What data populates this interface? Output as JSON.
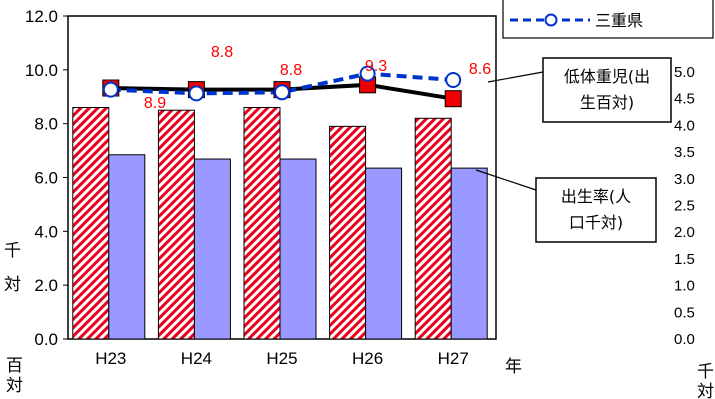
{
  "chart_data": {
    "type": "bar+line",
    "categories": [
      "H23",
      "H24",
      "H25",
      "H26",
      "H27"
    ],
    "left_axis": {
      "ticks": [
        "12.0",
        "10.0",
        "8.0",
        "6.0",
        "4.0",
        "2.0",
        "0.0"
      ],
      "ylim": [
        0,
        12
      ],
      "unit_label_top": "千対",
      "unit_label_bottom": "百対"
    },
    "right_axis": {
      "ticks": [
        "5.0",
        "4.5",
        "4.0",
        "3.5",
        "3.0",
        "2.5",
        "2.0",
        "1.5",
        "1.0",
        "0.5",
        "0.0"
      ],
      "ylim": [
        0,
        5
      ],
      "unit_label": "千対"
    },
    "x_unit_label": "年",
    "bar_series": [
      {
        "values": [
          8.6,
          8.5,
          8.6,
          7.9,
          8.2
        ],
        "axis": "left",
        "color": "#e8001c",
        "pattern": "diagonal-hatch"
      },
      {
        "values": [
          3.45,
          3.37,
          3.37,
          3.2,
          3.2
        ],
        "axis": "right",
        "color": "#9999ff",
        "pattern": "solid"
      }
    ],
    "line_series": [
      {
        "values": [
          4.7,
          4.67,
          4.67,
          4.76,
          4.5
        ],
        "axis": "right",
        "color": "#000000",
        "marker": "square",
        "marker_color": "#ee0000"
      },
      {
        "name": "三重県",
        "values": [
          4.67,
          4.6,
          4.62,
          4.97,
          4.85
        ],
        "axis": "right",
        "color": "#0033cc",
        "style": "dashed",
        "marker": "open-circle"
      }
    ],
    "data_labels": [
      "8.9",
      "8.8",
      "8.8",
      "9.3",
      "8.6"
    ],
    "callouts": [
      {
        "lines": [
          "低体重児(出",
          "生百対)"
        ]
      },
      {
        "lines": [
          "出生率(人",
          "口千対)"
        ]
      }
    ],
    "legend": {
      "position": "top-right",
      "entries": [
        "三重県"
      ]
    },
    "grid": false
  }
}
